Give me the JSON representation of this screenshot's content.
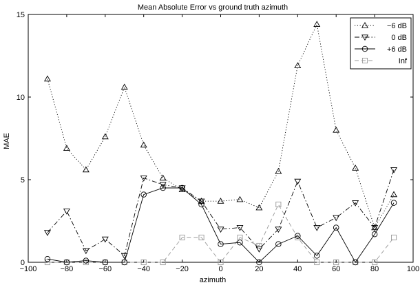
{
  "chart_data": {
    "type": "line",
    "title": "Mean Absolute Error vs ground truth azimuth",
    "xlabel": "azimuth",
    "ylabel": "MAE",
    "xlim": [
      -100,
      100
    ],
    "ylim": [
      0,
      15
    ],
    "xticks": [
      -100,
      -80,
      -60,
      -40,
      -20,
      0,
      20,
      40,
      60,
      80,
      100
    ],
    "yticks": [
      0,
      5,
      10,
      15
    ],
    "grid": false,
    "legend_position": "top-right",
    "x": [
      -90,
      -80,
      -70,
      -60,
      -50,
      -40,
      -30,
      -20,
      -10,
      0,
      10,
      20,
      30,
      40,
      50,
      60,
      70,
      80,
      90
    ],
    "series": [
      {
        "name": "−6 dB",
        "line_style": "dotted",
        "marker": "triangle-up",
        "color": "#000000",
        "values": [
          11.1,
          6.9,
          5.6,
          7.6,
          10.6,
          7.1,
          5.1,
          4.4,
          3.7,
          3.7,
          3.8,
          3.3,
          5.5,
          11.9,
          14.4,
          8.0,
          5.7,
          2.1,
          4.1
        ]
      },
      {
        "name": "0 dB",
        "line_style": "dash-dot",
        "marker": "triangle-down",
        "color": "#000000",
        "values": [
          1.8,
          3.1,
          0.7,
          1.4,
          0.4,
          5.1,
          4.7,
          4.5,
          3.7,
          2.0,
          2.1,
          0.8,
          2.0,
          4.9,
          2.1,
          2.7,
          3.6,
          2.1,
          5.6
        ]
      },
      {
        "name": "+6 dB",
        "line_style": "solid",
        "marker": "circle",
        "color": "#000000",
        "values": [
          0.2,
          0.0,
          0.1,
          0.0,
          0.0,
          4.1,
          4.5,
          4.5,
          3.5,
          1.1,
          1.2,
          0.0,
          1.1,
          1.6,
          0.4,
          2.1,
          0.0,
          1.7,
          3.6
        ]
      },
      {
        "name": "Inf",
        "line_style": "dashed",
        "marker": "square",
        "color": "#999999",
        "values": [
          0.0,
          0.0,
          0.0,
          0.0,
          0.0,
          0.0,
          0.0,
          1.5,
          1.5,
          0.0,
          1.5,
          1.0,
          3.5,
          1.5,
          0.0,
          0.0,
          0.0,
          0.0,
          1.5
        ]
      }
    ]
  }
}
